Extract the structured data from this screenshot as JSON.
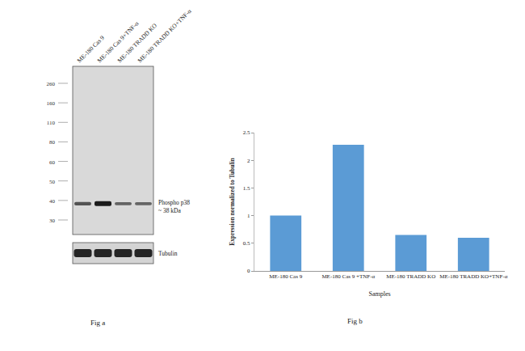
{
  "blot": {
    "caption": "Fig a",
    "lanes": [
      "ME-180 Cas 9",
      "ME-180 Cas 9+TNF-α",
      "ME-180 TRADD KO",
      "ME-180 TRADD KO+TNF-α"
    ],
    "markers": [
      260,
      160,
      110,
      80,
      60,
      50,
      40,
      30
    ],
    "band_label": [
      "Phospho p38",
      "~ 38 kDa"
    ],
    "loading_label": "Tubulin"
  },
  "chart_data": {
    "type": "bar",
    "caption": "Fig b",
    "categories": [
      "ME-180 Cas 9",
      "ME-180 Cas 9 +TNF-α",
      "ME-180 TRADD KO",
      "ME-180 TRADD KO+TNF-α"
    ],
    "values": [
      1.0,
      2.28,
      0.65,
      0.6
    ],
    "color": "#5b9bd5",
    "xlabel": "Samples",
    "ylabel": "Expression normalized to Tubulin",
    "ylim": [
      0,
      2.5
    ],
    "yticks": [
      0,
      0.5,
      1,
      1.5,
      2,
      2.5
    ],
    "grid": false
  }
}
